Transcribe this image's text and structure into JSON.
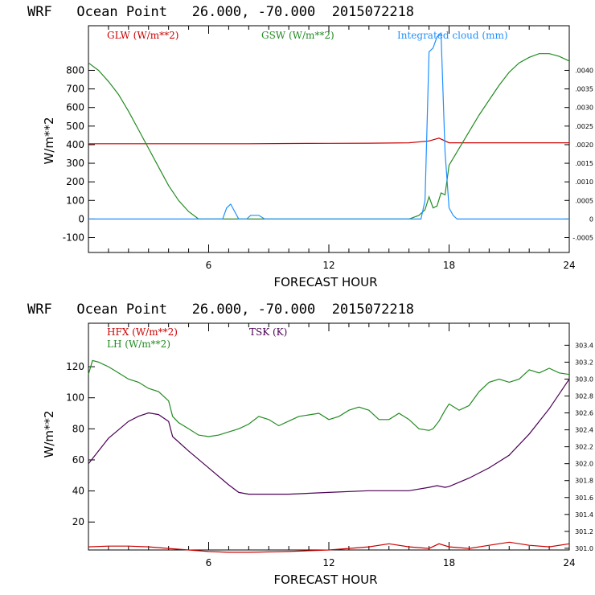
{
  "chart_data": [
    {
      "type": "line",
      "title": "WRF   Ocean Point   26.000, -70.000  2015072218",
      "xlabel": "FORECAST HOUR",
      "ylabel": "W/m**2",
      "xlim": [
        0,
        24
      ],
      "ylim": [
        -180,
        1040
      ],
      "y2lim": [
        -0.0009,
        0.0052
      ],
      "x_ticks": [
        "6",
        "12",
        "18",
        "24"
      ],
      "y_ticks": [
        "-100",
        "0",
        "100",
        "200",
        "300",
        "400",
        "500",
        "600",
        "700",
        "800"
      ],
      "y_tick_values": [
        -100,
        0,
        100,
        200,
        300,
        400,
        500,
        600,
        700,
        800
      ],
      "y2_ticks": [
        ".0040",
        ".0035",
        ".0030",
        ".0025",
        ".0020",
        ".0015",
        ".0010",
        ".0005",
        "0",
        "-.0005"
      ],
      "y2_tick_values": [
        0.004,
        0.0035,
        0.003,
        0.0025,
        0.002,
        0.0015,
        0.001,
        0.0005,
        0,
        -0.0005
      ],
      "series": [
        {
          "name": "GLW (W/m**2)",
          "color": "#cc0000",
          "axis": "left",
          "x": [
            0,
            2,
            4,
            6,
            8,
            10,
            12,
            14,
            16,
            17,
            17.5,
            18,
            19,
            20,
            22,
            24
          ],
          "y": [
            405,
            405,
            405,
            405,
            405,
            406,
            407,
            408,
            410,
            420,
            435,
            410,
            410,
            410,
            410,
            410
          ]
        },
        {
          "name": "GSW (W/m**2)",
          "color": "#228B22",
          "axis": "left",
          "x": [
            0,
            0.5,
            1,
            1.5,
            2,
            2.5,
            3,
            3.5,
            4,
            4.5,
            5,
            5.5,
            6,
            16,
            16.5,
            16.8,
            17,
            17.2,
            17.4,
            17.6,
            17.8,
            18,
            18.5,
            19,
            19.5,
            20,
            20.5,
            21,
            21.5,
            22,
            22.5,
            23,
            23.5,
            24
          ],
          "y": [
            840,
            800,
            740,
            670,
            580,
            480,
            380,
            280,
            180,
            100,
            40,
            0,
            0,
            0,
            20,
            50,
            120,
            60,
            70,
            140,
            130,
            290,
            380,
            470,
            560,
            640,
            720,
            790,
            840,
            870,
            890,
            890,
            875,
            850
          ]
        },
        {
          "name": "Integrated cloud (mm)",
          "color": "#1E90FF",
          "axis": "right",
          "x": [
            0,
            6.7,
            6.9,
            7.1,
            7.3,
            7.5,
            7.9,
            8.1,
            8.5,
            8.8,
            16.6,
            16.8,
            17.0,
            17.2,
            17.4,
            17.6,
            17.8,
            18.0,
            18.2,
            18.4,
            24
          ],
          "y": [
            0,
            0,
            0.0003,
            0.0004,
            0.0002,
            0,
            0,
            0.0001,
            0.0001,
            0,
            0,
            0.0005,
            0.0045,
            0.0046,
            0.0049,
            0.005,
            0.0018,
            0.0003,
            0.0001,
            0,
            0
          ]
        }
      ]
    },
    {
      "type": "line",
      "title": "WRF   Ocean Point   26.000, -70.000  2015072218",
      "xlabel": "FORECAST HOUR",
      "ylabel": "W/m**2",
      "xlim": [
        0,
        24
      ],
      "ylim": [
        2,
        148
      ],
      "y2lim": [
        300.98,
        303.66
      ],
      "x_ticks": [
        "6",
        "12",
        "18",
        "24"
      ],
      "y_ticks": [
        "20",
        "40",
        "60",
        "80",
        "100",
        "120"
      ],
      "y_tick_values": [
        20,
        40,
        60,
        80,
        100,
        120
      ],
      "y2_ticks": [
        "303.4",
        "303.2",
        "303.0",
        "302.8",
        "302.6",
        "302.4",
        "302.2",
        "302.0",
        "301.8",
        "301.6",
        "301.4",
        "301.2",
        "301.0"
      ],
      "y2_tick_values": [
        303.4,
        303.2,
        303.0,
        302.8,
        302.6,
        302.4,
        302.2,
        302.0,
        301.8,
        301.6,
        301.4,
        301.2,
        301.0
      ],
      "series": [
        {
          "name": "HFX (W/m**2)",
          "color": "#cc0000",
          "axis": "left",
          "x": [
            0,
            1,
            2,
            3,
            4,
            5,
            6,
            7,
            8,
            10,
            12,
            13,
            14,
            15,
            16,
            17,
            17.5,
            18,
            19,
            20,
            21,
            22,
            23,
            24
          ],
          "y": [
            4,
            4.5,
            4.5,
            4,
            3,
            2,
            1,
            0.5,
            0.5,
            1,
            2,
            3,
            4,
            6,
            4,
            3,
            6,
            4,
            3,
            5,
            7,
            5,
            4,
            6
          ]
        },
        {
          "name": "LH (W/m**2)",
          "color": "#228B22",
          "axis": "left",
          "x": [
            0,
            0.2,
            0.5,
            1,
            1.5,
            2,
            2.5,
            3,
            3.5,
            4,
            4.2,
            4.5,
            5,
            5.5,
            6,
            6.5,
            7,
            7.5,
            8,
            8.5,
            9,
            9.5,
            10,
            10.5,
            11,
            11.5,
            12,
            12.5,
            13,
            13.5,
            14,
            14.5,
            15,
            15.5,
            16,
            16.5,
            17,
            17.2,
            17.5,
            17.8,
            18,
            18.5,
            19,
            19.5,
            20,
            20.5,
            21,
            21.5,
            22,
            22.5,
            23,
            23.5,
            24
          ],
          "y": [
            115,
            124,
            123,
            120,
            116,
            112,
            110,
            106,
            104,
            98,
            88,
            84,
            80,
            76,
            75,
            76,
            78,
            80,
            83,
            88,
            86,
            82,
            85,
            88,
            89,
            90,
            86,
            88,
            92,
            94,
            92,
            86,
            86,
            90,
            86,
            80,
            79,
            80,
            85,
            92,
            96,
            92,
            95,
            104,
            110,
            112,
            110,
            112,
            118,
            116,
            119,
            116,
            115
          ]
        },
        {
          "name": "TSK (K)",
          "color": "#4B0055",
          "axis": "right",
          "x": [
            0,
            0.5,
            1,
            1.5,
            2,
            2.5,
            3,
            3.5,
            4,
            4.2,
            5,
            6,
            7,
            7.5,
            8,
            10,
            12,
            14,
            16,
            17,
            17.4,
            17.8,
            18,
            19,
            20,
            21,
            22,
            23,
            24
          ],
          "y": [
            302.0,
            302.15,
            302.3,
            302.4,
            302.5,
            302.56,
            302.6,
            302.58,
            302.5,
            302.32,
            302.15,
            301.95,
            301.75,
            301.66,
            301.64,
            301.64,
            301.66,
            301.68,
            301.68,
            301.72,
            301.74,
            301.72,
            301.73,
            301.83,
            301.95,
            302.1,
            302.35,
            302.65,
            303.0
          ]
        }
      ]
    }
  ]
}
